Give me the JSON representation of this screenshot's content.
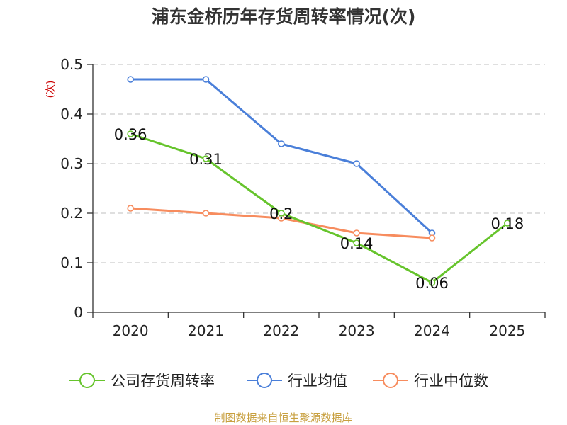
{
  "chart_data": {
    "type": "line",
    "title": "浦东金桥历年存货周转率情况(次)",
    "ylabel": "(次)",
    "xlabel": "",
    "categories": [
      "2020",
      "2021",
      "2022",
      "2023",
      "2024",
      "2025"
    ],
    "ylim": [
      0,
      0.5
    ],
    "yticks": [
      0,
      0.1,
      0.2,
      0.3,
      0.4,
      0.5
    ],
    "ytick_labels": [
      "0",
      "0.1",
      "0.2",
      "0.3",
      "0.4",
      "0.5"
    ],
    "grid": true,
    "legend_position": "bottom",
    "series": [
      {
        "name": "公司存货周转率",
        "color": "#66c42c",
        "values": [
          0.36,
          0.31,
          0.2,
          0.14,
          0.06,
          0.18
        ],
        "labels": [
          "0.36",
          "0.31",
          "0.2",
          "0.14",
          "0.06",
          "0.18"
        ]
      },
      {
        "name": "行业均值",
        "color": "#4a7fd9",
        "values": [
          0.47,
          0.47,
          0.34,
          0.3,
          0.16,
          null
        ]
      },
      {
        "name": "行业中位数",
        "color": "#f78c5e",
        "values": [
          0.21,
          0.2,
          0.19,
          0.16,
          0.15,
          null
        ]
      }
    ]
  },
  "source": "制图数据来自恒生聚源数据库",
  "colors": {
    "axis": "#333333",
    "grid": "#cccccc",
    "ylabel": "#cc0000",
    "source": "#c8a040",
    "title": "#333333"
  }
}
